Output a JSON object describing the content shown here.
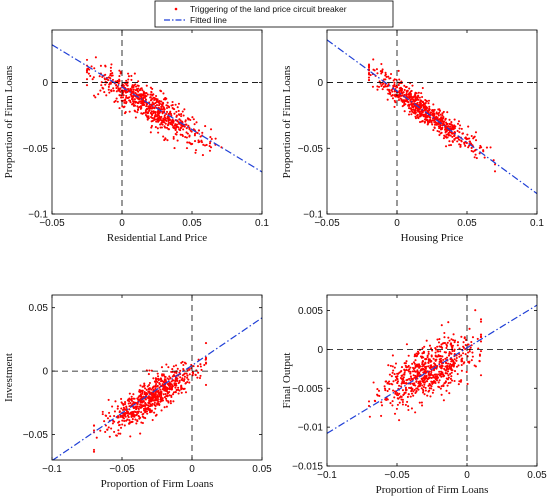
{
  "legend": {
    "placement": "top-center",
    "entries": [
      {
        "label": "Triggering of the land price circuit breaker",
        "marker": "dot",
        "color": "#ff0000"
      },
      {
        "label": "Fitted line",
        "marker": "dash-dot",
        "color": "#1f3fd6"
      }
    ]
  },
  "chart_data": [
    {
      "type": "scatter",
      "xlabel": "Residential Land Price",
      "ylabel": "Proportion of Firm Loans",
      "xlim": [
        -0.05,
        0.1
      ],
      "ylim": [
        -0.1,
        0.04
      ],
      "xticks": [
        -0.05,
        0,
        0.05,
        0.1
      ],
      "xtick_labels": [
        "−0.05",
        "0",
        "0.05",
        "0.1"
      ],
      "yticks": [
        -0.1,
        -0.05,
        0
      ],
      "ytick_labels": [
        "−0.1",
        "−0.05",
        "0"
      ],
      "grid": false,
      "reference_lines": {
        "x": 0,
        "y": 0
      },
      "scatter_series": {
        "name": "Triggering of the land price circuit breaker",
        "color": "#ff0000",
        "count": 700,
        "x_mean": 0.02,
        "x_sd": 0.02,
        "slope": -0.65,
        "intercept": -0.005,
        "noise_sd": 0.0065,
        "x_range": [
          -0.025,
          0.08
        ]
      },
      "fitted_line": {
        "name": "Fitted line",
        "color": "#1f3fd6",
        "slope": -0.645,
        "intercept": -0.0035,
        "x_range": [
          -0.05,
          0.1
        ]
      }
    },
    {
      "type": "scatter",
      "xlabel": "Housing Price",
      "ylabel": "Proportion of Firm Loans",
      "xlim": [
        -0.05,
        0.1
      ],
      "ylim": [
        -0.1,
        0.04
      ],
      "xticks": [
        -0.05,
        0,
        0.05,
        0.1
      ],
      "xtick_labels": [
        "−0.05",
        "0",
        "0.05",
        "0.1"
      ],
      "yticks": [
        -0.1,
        -0.05,
        0
      ],
      "ytick_labels": [
        "−0.1",
        "−0.05",
        "0"
      ],
      "grid": false,
      "reference_lines": {
        "x": 0,
        "y": 0
      },
      "scatter_series": {
        "name": "Triggering of the land price circuit breaker",
        "color": "#ff0000",
        "count": 700,
        "x_mean": 0.02,
        "x_sd": 0.018,
        "slope": -0.78,
        "intercept": -0.006,
        "noise_sd": 0.005,
        "x_range": [
          -0.02,
          0.07
        ]
      },
      "fitted_line": {
        "name": "Fitted line",
        "color": "#1f3fd6",
        "slope": -0.78,
        "intercept": -0.0065,
        "x_range": [
          -0.05,
          0.1
        ]
      }
    },
    {
      "type": "scatter",
      "xlabel": "Proportion of Firm Loans",
      "ylabel": "Investment",
      "xlim": [
        -0.1,
        0.05
      ],
      "ylim": [
        -0.07,
        0.06
      ],
      "xticks": [
        -0.1,
        -0.05,
        0,
        0.05
      ],
      "xtick_labels": [
        "−0.1",
        "−0.05",
        "0",
        "0.05"
      ],
      "yticks": [
        -0.05,
        0,
        0.05
      ],
      "ytick_labels": [
        "−0.05",
        "0",
        "0.05"
      ],
      "grid": false,
      "reference_lines": {
        "x": 0,
        "y": 0
      },
      "scatter_series": {
        "name": "Triggering of the land price circuit breaker",
        "color": "#ff0000",
        "count": 700,
        "x_mean": -0.028,
        "x_sd": 0.016,
        "slope": 0.68,
        "intercept": -0.001,
        "noise_sd": 0.007,
        "x_range": [
          -0.07,
          0.01
        ]
      },
      "fitted_line": {
        "name": "Fitted line",
        "color": "#1f3fd6",
        "slope": 0.75,
        "intercept": 0.0045,
        "x_range": [
          -0.1,
          0.05
        ]
      }
    },
    {
      "type": "scatter",
      "xlabel": "Proportion of Firm Loans",
      "ylabel": "Final Output",
      "xlim": [
        -0.1,
        0.05
      ],
      "ylim": [
        -0.015,
        0.007
      ],
      "xticks": [
        -0.1,
        -0.05,
        0,
        0.05
      ],
      "xtick_labels": [
        "−0.1",
        "−0.05",
        "0",
        "0.05"
      ],
      "yticks": [
        -0.015,
        -0.01,
        -0.005,
        0,
        0.005
      ],
      "ytick_labels": [
        "−0.015",
        "−0.01",
        "−0.005",
        "0",
        "0.005"
      ],
      "grid": false,
      "reference_lines": {
        "x": 0,
        "y": 0
      },
      "scatter_series": {
        "name": "Triggering of the land price circuit breaker",
        "color": "#ff0000",
        "count": 700,
        "x_mean": -0.028,
        "x_sd": 0.016,
        "slope": 0.09,
        "intercept": -0.0002,
        "noise_sd": 0.0017,
        "x_range": [
          -0.07,
          0.01
        ]
      },
      "fitted_line": {
        "name": "Fitted line",
        "color": "#1f3fd6",
        "slope": 0.11,
        "intercept": 0.0002,
        "x_range": [
          -0.1,
          0.05
        ]
      }
    }
  ]
}
